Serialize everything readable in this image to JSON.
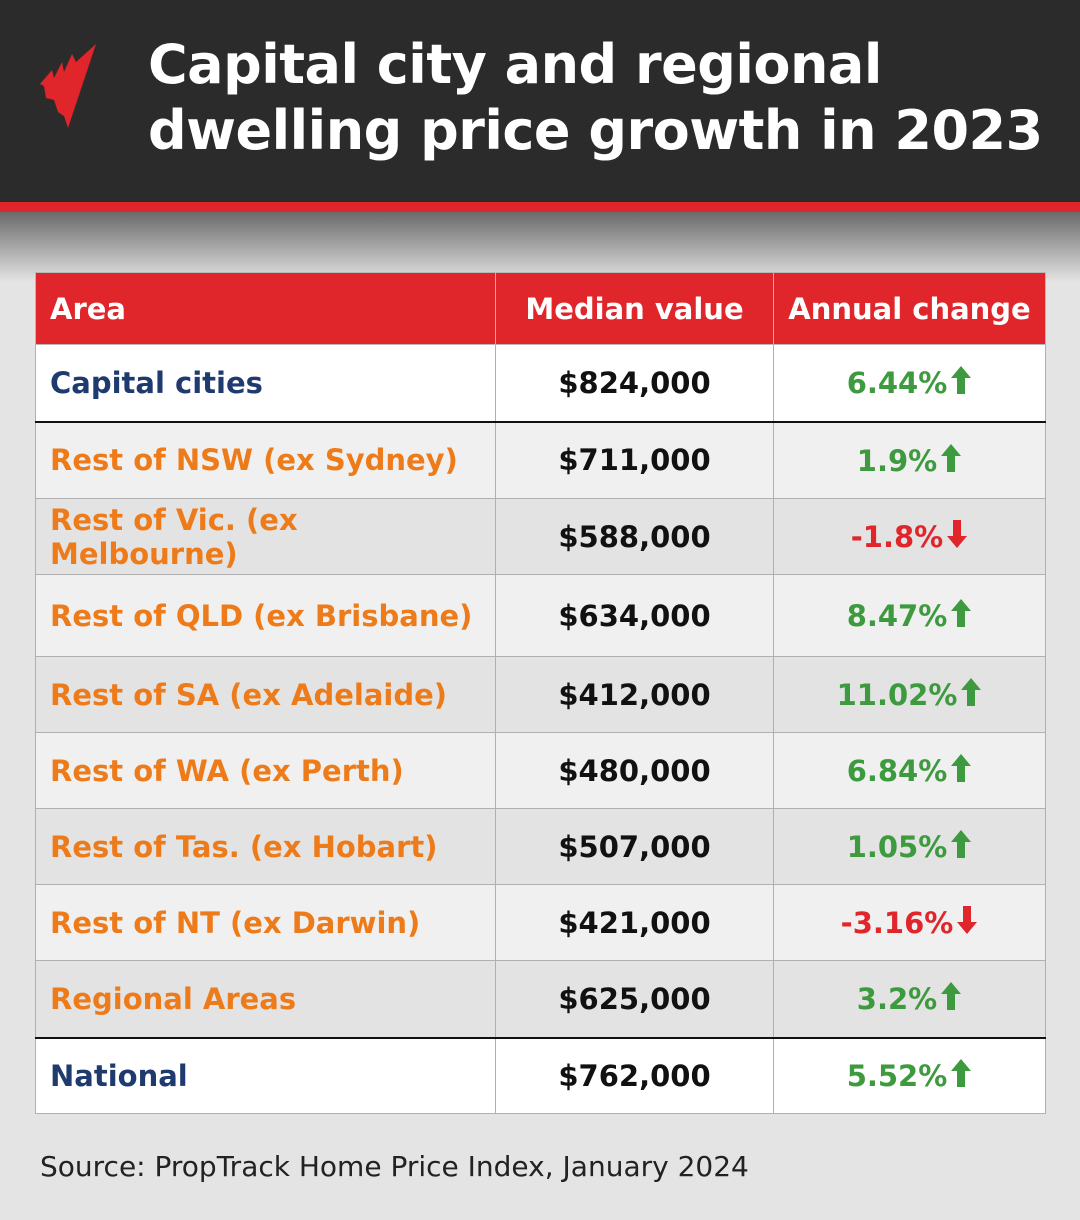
{
  "title_line1": "Capital city and regional",
  "title_line2": "dwelling price growth in 2023",
  "colors": {
    "header_bg": "#2b2b2b",
    "accent_red": "#e0262a",
    "positive": "#3d9a3e",
    "negative": "#e0262a",
    "capital_label": "#1f3a6e",
    "regional_label": "#ee7b1a"
  },
  "logo": "SBS",
  "source": "Source: PropTrack Home Price Index, January 2024",
  "chart_data": {
    "type": "table",
    "columns": [
      "Area",
      "Median value",
      "Annual change"
    ],
    "rows": [
      {
        "area": "Capital cities",
        "median": "$824,000",
        "change": "6.44%",
        "direction": "up",
        "group": "capital"
      },
      {
        "area": "Rest of NSW (ex Sydney)",
        "median": "$711,000",
        "change": "1.9%",
        "direction": "up",
        "group": "regional"
      },
      {
        "area": "Rest of Vic. (ex Melbourne)",
        "median": "$588,000",
        "change": "-1.8%",
        "direction": "down",
        "group": "regional"
      },
      {
        "area": "Rest of QLD (ex Brisbane)",
        "median": "$634,000",
        "change": "8.47%",
        "direction": "up",
        "group": "regional"
      },
      {
        "area": "Rest of SA (ex Adelaide)",
        "median": "$412,000",
        "change": "11.02%",
        "direction": "up",
        "group": "regional"
      },
      {
        "area": "Rest of WA (ex Perth)",
        "median": "$480,000",
        "change": "6.84%",
        "direction": "up",
        "group": "regional"
      },
      {
        "area": "Rest of Tas. (ex Hobart)",
        "median": "$507,000",
        "change": "1.05%",
        "direction": "up",
        "group": "regional"
      },
      {
        "area": "Rest of NT (ex Darwin)",
        "median": "$421,000",
        "change": "-3.16%",
        "direction": "down",
        "group": "regional"
      },
      {
        "area": "Regional Areas",
        "median": "$625,000",
        "change": "3.2%",
        "direction": "up",
        "group": "regional"
      },
      {
        "area": "National",
        "median": "$762,000",
        "change": "5.52%",
        "direction": "up",
        "group": "national"
      }
    ]
  }
}
